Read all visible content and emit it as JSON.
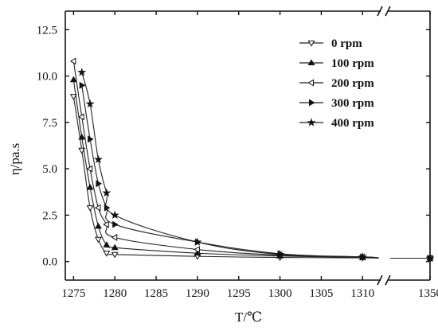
{
  "chart_data": {
    "type": "line",
    "xlabel": "T/℃",
    "ylabel": "η/pa.s",
    "xlim": [
      1274,
      1350
    ],
    "ylim": [
      -1,
      13.5
    ],
    "x_break": {
      "after": 1312,
      "resume": 1349
    },
    "x_ticks": [
      1275,
      1280,
      1285,
      1290,
      1295,
      1300,
      1305,
      1310,
      1350
    ],
    "x_tick_labels": [
      "1275",
      "1280",
      "1285",
      "1290",
      "1295",
      "1300",
      "1305",
      "1310",
      "1350"
    ],
    "y_ticks": [
      0.0,
      2.5,
      5.0,
      7.5,
      10.0,
      12.5
    ],
    "y_tick_labels": [
      "0.0",
      "2.5",
      "5.0",
      "7.5",
      "10.0",
      "12.5"
    ],
    "grid": false,
    "legend_position": "top-right",
    "series": [
      {
        "name": "0 rpm",
        "marker": "triangle-down-open",
        "x": [
          1275,
          1276,
          1277,
          1278,
          1279,
          1280,
          1290,
          1300,
          1310,
          1350
        ],
        "y": [
          8.9,
          6.0,
          2.9,
          1.2,
          0.45,
          0.38,
          0.28,
          0.22,
          0.2,
          0.18
        ]
      },
      {
        "name": "100 rpm",
        "marker": "triangle-up-filled",
        "x": [
          1275,
          1276,
          1277,
          1278,
          1279,
          1280,
          1290,
          1300,
          1310,
          1350
        ],
        "y": [
          9.8,
          6.7,
          4.0,
          1.9,
          0.9,
          0.75,
          0.45,
          0.3,
          0.22,
          0.18
        ]
      },
      {
        "name": "200 rpm",
        "marker": "triangle-left-open",
        "x": [
          1275,
          1276,
          1277,
          1278,
          1279,
          1280,
          1290,
          1300,
          1310,
          1350
        ],
        "y": [
          10.8,
          7.8,
          5.0,
          2.9,
          2.0,
          1.3,
          0.65,
          0.35,
          0.25,
          0.18
        ]
      },
      {
        "name": "300 rpm",
        "marker": "triangle-right-filled",
        "x": [
          1276,
          1277,
          1278,
          1279,
          1280,
          1290,
          1300,
          1310,
          1350
        ],
        "y": [
          9.5,
          6.6,
          4.2,
          2.9,
          2.0,
          1.05,
          0.42,
          0.25,
          0.18
        ]
      },
      {
        "name": "400 rpm",
        "marker": "star-filled",
        "x": [
          1276,
          1277,
          1278,
          1279,
          1280,
          1290,
          1300,
          1310,
          1350
        ],
        "y": [
          10.2,
          8.5,
          5.5,
          3.7,
          2.5,
          1.05,
          0.38,
          0.25,
          0.18
        ]
      }
    ]
  }
}
